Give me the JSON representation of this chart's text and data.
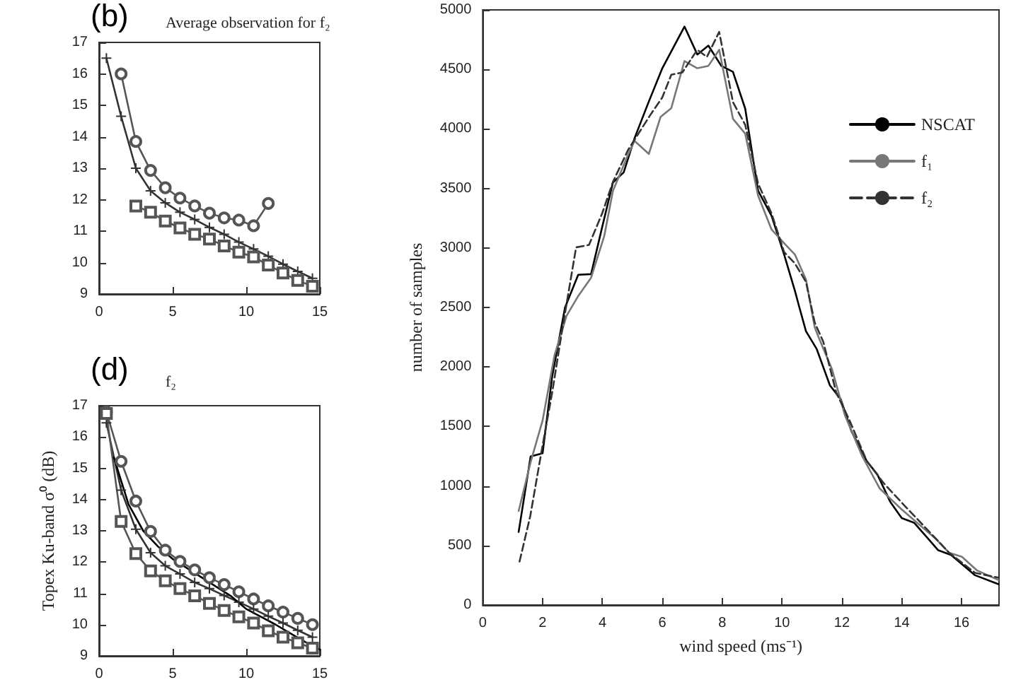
{
  "chart_data": [
    {
      "type": "line",
      "title": "Average observation for f₂",
      "annotations": [
        "(b)"
      ],
      "xlim": [
        0,
        15
      ],
      "xticks": [
        0,
        5,
        10,
        15
      ],
      "ylim": [
        9,
        17
      ],
      "yticks": [
        9,
        10,
        11,
        12,
        13,
        14,
        15,
        16,
        17
      ],
      "grid": false,
      "legend": false,
      "line_style": "solid",
      "series": [
        {
          "color": "#555555",
          "marker": "circle",
          "x": [
            1.5,
            2.5,
            3.5,
            4.5,
            5.5,
            6.5,
            7.5,
            8.5,
            9.5,
            10.5,
            11.5
          ],
          "values": [
            16.0,
            13.85,
            12.93,
            12.38,
            12.05,
            11.8,
            11.57,
            11.42,
            11.35,
            11.17,
            11.88
          ]
        },
        {
          "color": "#333333",
          "marker": "cross",
          "x": [
            0.5,
            1.5,
            2.5,
            3.5,
            4.5,
            5.5,
            6.5,
            7.5,
            8.5,
            9.5,
            10.5,
            11.5,
            12.5,
            13.5,
            14.5
          ],
          "values": [
            16.5,
            14.65,
            13.0,
            12.28,
            11.9,
            11.6,
            11.37,
            11.12,
            10.9,
            10.65,
            10.43,
            10.2,
            9.95,
            9.72,
            9.5
          ]
        },
        {
          "color": "#555555",
          "marker": "square",
          "x": [
            2.5,
            3.5,
            4.5,
            5.5,
            6.5,
            7.5,
            8.5,
            9.5,
            10.5,
            11.5,
            12.5,
            13.5,
            14.5
          ],
          "values": [
            11.8,
            11.6,
            11.32,
            11.1,
            10.9,
            10.75,
            10.53,
            10.33,
            10.18,
            9.92,
            9.67,
            9.43,
            9.25
          ]
        }
      ]
    },
    {
      "type": "line",
      "title": "f₂",
      "ylabel": "Topex Ku-band σ⁰ (dB)",
      "annotations": [
        "(d)"
      ],
      "xlim": [
        0,
        15
      ],
      "xticks": [
        0,
        5,
        10,
        15
      ],
      "ylim": [
        9,
        17
      ],
      "yticks": [
        9,
        10,
        11,
        12,
        13,
        14,
        15,
        16,
        17
      ],
      "grid": false,
      "legend": false,
      "line_style": "solid",
      "series": [
        {
          "color": "#555555",
          "marker": "circle",
          "x": [
            0.5,
            1.5,
            2.5,
            3.5,
            4.5,
            5.5,
            6.5,
            7.5,
            8.5,
            9.5,
            10.5,
            11.5,
            12.5,
            13.5,
            14.5
          ],
          "values": [
            16.8,
            15.22,
            13.95,
            12.98,
            12.38,
            12.02,
            11.75,
            11.5,
            11.28,
            11.05,
            10.82,
            10.6,
            10.4,
            10.2,
            10.0
          ]
        },
        {
          "color": "#333333",
          "marker": "cross",
          "x": [
            0.5,
            1.5,
            2.5,
            3.5,
            4.5,
            5.5,
            6.5,
            7.5,
            8.5,
            9.5,
            10.5,
            11.5,
            12.5,
            13.5,
            14.5
          ],
          "values": [
            16.45,
            14.3,
            13.05,
            12.3,
            11.88,
            11.62,
            11.35,
            11.15,
            10.93,
            10.72,
            10.5,
            10.27,
            10.05,
            9.82,
            9.6
          ]
        },
        {
          "color": "#555555",
          "marker": "square",
          "x": [
            0.5,
            1.5,
            2.5,
            3.5,
            4.5,
            5.5,
            6.5,
            7.5,
            8.5,
            9.5,
            10.5,
            11.5,
            12.5,
            13.5,
            14.5
          ],
          "values": [
            16.75,
            13.3,
            12.27,
            11.72,
            11.4,
            11.15,
            10.92,
            10.68,
            10.45,
            10.25,
            10.05,
            9.8,
            9.6,
            9.42,
            9.25
          ]
        },
        {
          "color": "#000000",
          "marker": "none",
          "x": [
            1,
            1.5,
            2,
            3,
            4,
            5,
            6,
            7,
            8,
            9,
            10,
            11,
            12,
            13,
            14,
            15
          ],
          "values": [
            15.35,
            14.6,
            13.85,
            13.0,
            12.5,
            12.1,
            11.8,
            11.5,
            11.2,
            10.9,
            10.5,
            10.25,
            10.0,
            9.72,
            9.45,
            9.2
          ]
        }
      ]
    },
    {
      "type": "line",
      "xlabel": "wind speed (ms⁻¹)",
      "ylabel": "number of samples",
      "xlim": [
        0,
        17.25
      ],
      "xticks": [
        0,
        2,
        4,
        6,
        8,
        10,
        12,
        14,
        16
      ],
      "ylim": [
        0,
        5000
      ],
      "yticks": [
        0,
        500,
        1000,
        1500,
        2000,
        2500,
        3000,
        3500,
        4000,
        4500,
        5000
      ],
      "grid": false,
      "legend": "top right",
      "marker": "none",
      "series": [
        {
          "name": "NSCAT",
          "color": "#000000",
          "line_style": "solid",
          "x": [
            1.2,
            1.6,
            2.0,
            2.32,
            2.75,
            3.19,
            3.62,
            3.99,
            4.35,
            4.71,
            5.07,
            5.51,
            6.0,
            6.74,
            7.17,
            7.54,
            7.97,
            8.36,
            8.77,
            9.2,
            9.65,
            10.07,
            10.43,
            10.58,
            10.8,
            11.16,
            11.6,
            11.96,
            12.32,
            12.83,
            13.19,
            13.62,
            14.0,
            14.42,
            15.22,
            15.65,
            16.45,
            17.23
          ],
          "values": [
            614,
            1248,
            1275,
            1920,
            2500,
            2775,
            2780,
            3175,
            3550,
            3635,
            3920,
            4205,
            4510,
            4860,
            4625,
            4700,
            4530,
            4480,
            4170,
            3480,
            3270,
            2945,
            2640,
            2500,
            2300,
            2150,
            1845,
            1730,
            1460,
            1210,
            1095,
            865,
            730,
            690,
            460,
            420,
            250,
            175
          ]
        },
        {
          "name": "f₁",
          "color": "#777777",
          "line_style": "solid",
          "x": [
            1.2,
            1.6,
            2.0,
            2.4,
            2.8,
            3.2,
            3.62,
            4.06,
            4.35,
            4.86,
            5.07,
            5.55,
            5.94,
            6.3,
            6.74,
            7.17,
            7.54,
            7.9,
            8.36,
            8.77,
            9.2,
            9.65,
            10.07,
            10.43,
            10.8,
            11.09,
            11.23,
            11.67,
            12.1,
            12.68,
            13.26,
            13.99,
            15.14,
            15.58,
            16.01,
            16.52,
            17.23
          ],
          "values": [
            790,
            1200,
            1550,
            2100,
            2430,
            2600,
            2750,
            3100,
            3480,
            3785,
            3900,
            3790,
            4100,
            4175,
            4570,
            4510,
            4530,
            4665,
            4085,
            3960,
            3440,
            3155,
            3040,
            2945,
            2735,
            2335,
            2245,
            1980,
            1595,
            1250,
            980,
            805,
            555,
            440,
            405,
            290,
            210
          ]
        },
        {
          "name": "f₂",
          "color": "#333333",
          "line_style": "dashed",
          "x": [
            1.23,
            1.59,
            1.96,
            2.32,
            2.65,
            3.12,
            3.55,
            3.99,
            4.35,
            4.86,
            5.58,
            6.0,
            6.3,
            6.67,
            7.17,
            7.49,
            7.9,
            8.36,
            8.77,
            9.2,
            9.65,
            10.07,
            10.43,
            10.8,
            11.09,
            11.38,
            11.81,
            12.25,
            12.83,
            13.41,
            14.13,
            15.0,
            15.58,
            16.45,
            17.23
          ],
          "values": [
            365,
            750,
            1285,
            1785,
            2305,
            3005,
            3025,
            3290,
            3555,
            3825,
            4110,
            4265,
            4455,
            4475,
            4665,
            4605,
            4815,
            4225,
            4035,
            3540,
            3290,
            2965,
            2870,
            2715,
            2375,
            2210,
            1785,
            1555,
            1210,
            1020,
            825,
            595,
            440,
            270,
            230
          ]
        }
      ]
    }
  ]
}
